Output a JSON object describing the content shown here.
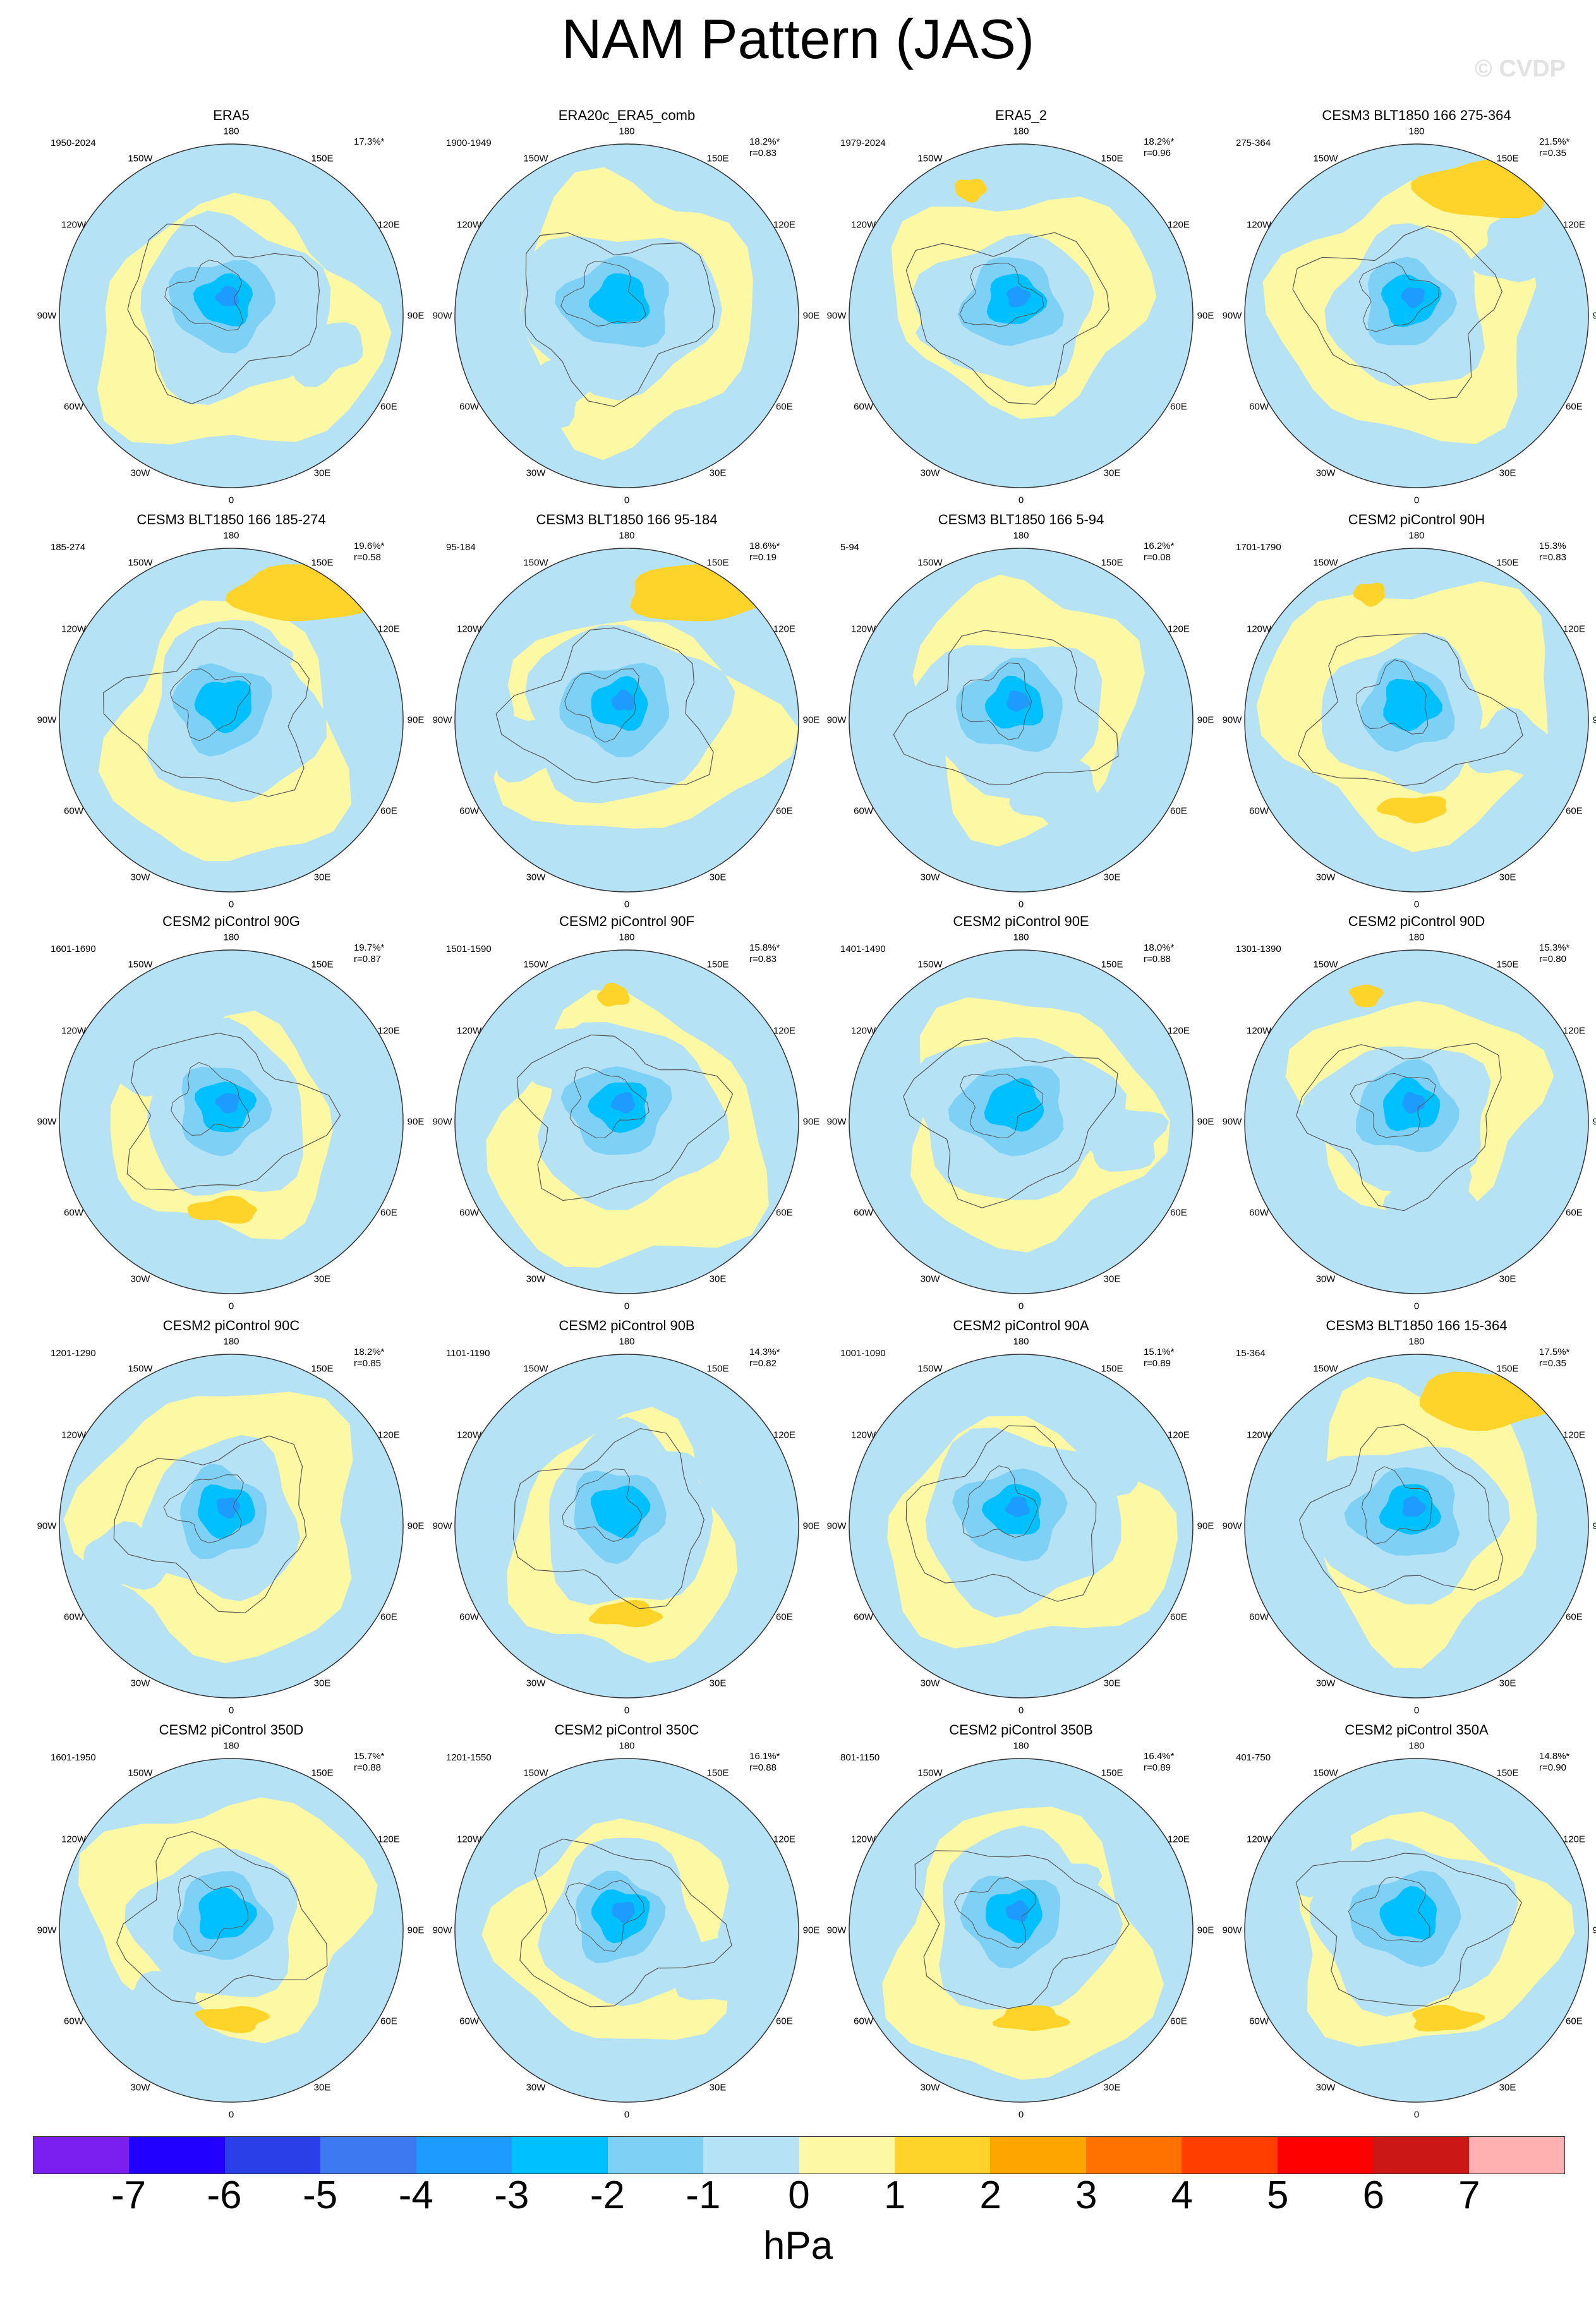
{
  "title": "NAM Pattern (JAS)",
  "watermark": "© CVDP",
  "colors": {
    "levels": [
      "#7b1ff0",
      "#2200ff",
      "#2b3fe8",
      "#3b7af0",
      "#1e9bff",
      "#00c0ff",
      "#7fd0f5",
      "#b6e2f5",
      "#fdf8a3",
      "#ffd42a",
      "#ffa500",
      "#ff7200",
      "#ff3e00",
      "#ff0000",
      "#cc1717",
      "#ffb0b0"
    ],
    "coast": "#555555"
  },
  "grid_labels": [
    "180",
    "150E",
    "120E",
    "90E",
    "60E",
    "30E",
    "0",
    "30W",
    "60W",
    "90W",
    "120W",
    "150W"
  ],
  "chart_data": {
    "type": "polar_map_panels",
    "variable": "NAM Pattern (JAS)",
    "units": "hPa",
    "colorbar_ticks": [
      "-7",
      "-6",
      "-5",
      "-4",
      "-3",
      "-2",
      "-1",
      "0",
      "1",
      "2",
      "3",
      "4",
      "5",
      "6",
      "7"
    ],
    "colorbar_unit": "hPa",
    "panels": [
      {
        "title": "ERA5",
        "years": "1950-2024",
        "pct": "17.3%*",
        "r": ""
      },
      {
        "title": "ERA20c_ERA5_comb",
        "years": "1900-1949",
        "pct": "18.2%*",
        "r": "r=0.83"
      },
      {
        "title": "ERA5_2",
        "years": "1979-2024",
        "pct": "18.2%*",
        "r": "r=0.96"
      },
      {
        "title": "CESM3 BLT1850 166 275-364",
        "years": "275-364",
        "pct": "21.5%*",
        "r": "r=0.35"
      },
      {
        "title": "CESM3 BLT1850 166 185-274",
        "years": "185-274",
        "pct": "19.6%*",
        "r": "r=0.58"
      },
      {
        "title": "CESM3 BLT1850 166 95-184",
        "years": "95-184",
        "pct": "18.6%*",
        "r": "r=0.19"
      },
      {
        "title": "CESM3 BLT1850 166 5-94",
        "years": "5-94",
        "pct": "16.2%*",
        "r": "r=0.08"
      },
      {
        "title": "CESM2 piControl 90H",
        "years": "1701-1790",
        "pct": "15.3%",
        "r": "r=0.83"
      },
      {
        "title": "CESM2 piControl 90G",
        "years": "1601-1690",
        "pct": "19.7%*",
        "r": "r=0.87"
      },
      {
        "title": "CESM2 piControl 90F",
        "years": "1501-1590",
        "pct": "15.8%*",
        "r": "r=0.83"
      },
      {
        "title": "CESM2 piControl 90E",
        "years": "1401-1490",
        "pct": "18.0%*",
        "r": "r=0.88"
      },
      {
        "title": "CESM2 piControl 90D",
        "years": "1301-1390",
        "pct": "15.3%*",
        "r": "r=0.80"
      },
      {
        "title": "CESM2 piControl 90C",
        "years": "1201-1290",
        "pct": "18.2%*",
        "r": "r=0.85"
      },
      {
        "title": "CESM2 piControl 90B",
        "years": "1101-1190",
        "pct": "14.3%*",
        "r": "r=0.82"
      },
      {
        "title": "CESM2 piControl 90A",
        "years": "1001-1090",
        "pct": "15.1%*",
        "r": "r=0.89"
      },
      {
        "title": "CESM3 BLT1850 166 15-364",
        "years": "15-364",
        "pct": "17.5%*",
        "r": "r=0.35"
      },
      {
        "title": "CESM2 piControl 350D",
        "years": "1601-1950",
        "pct": "15.7%*",
        "r": "r=0.88"
      },
      {
        "title": "CESM2 piControl 350C",
        "years": "1201-1550",
        "pct": "16.1%*",
        "r": "r=0.88"
      },
      {
        "title": "CESM2 piControl 350B",
        "years": "801-1150",
        "pct": "16.4%*",
        "r": "r=0.89"
      },
      {
        "title": "CESM2 piControl 350A",
        "years": "401-750",
        "pct": "14.8%*",
        "r": "r=0.90"
      }
    ]
  }
}
